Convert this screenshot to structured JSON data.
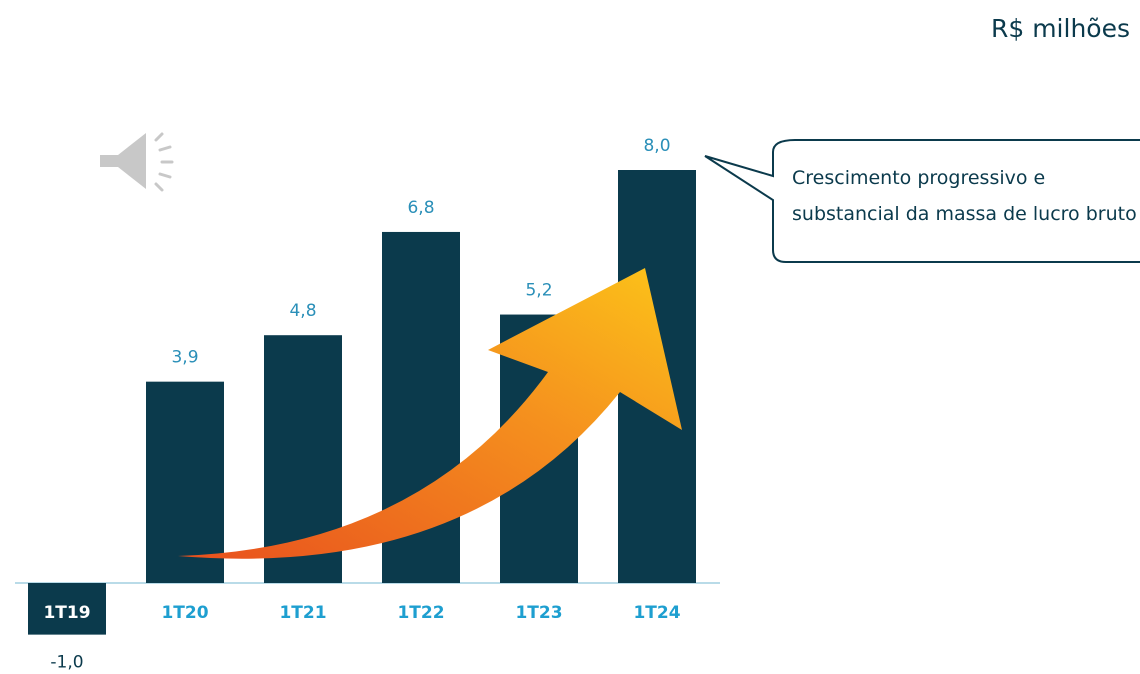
{
  "chart_data": {
    "type": "bar",
    "unit_label": "R$ milhões",
    "categories": [
      "1T19",
      "1T20",
      "1T21",
      "1T22",
      "1T23",
      "1T24"
    ],
    "values": [
      -1.0,
      3.9,
      4.8,
      6.8,
      5.2,
      8.0
    ],
    "value_labels": [
      "-1,0",
      "3,9",
      "4,8",
      "6,8",
      "5,2",
      "8,0"
    ],
    "color": "#0b3a4c",
    "label_color": "#2a8fb8",
    "category_color": "#1e9fd0",
    "annotation": "Crescimento progressivo e substancial da massa de lucro bruto"
  }
}
